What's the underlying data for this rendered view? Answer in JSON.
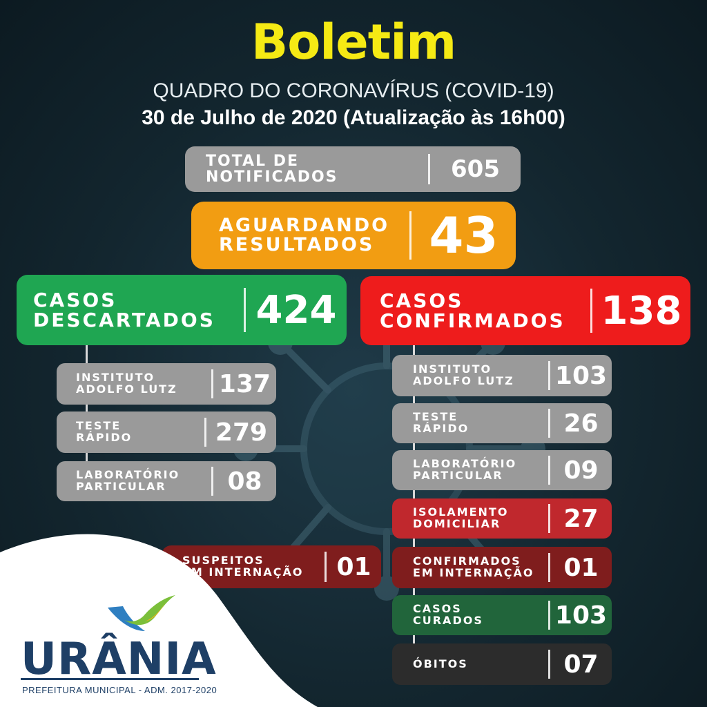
{
  "header": {
    "title": "Boletim",
    "subtitle": "QUADRO DO CORONAVÍRUS (COVID-19)",
    "date": "30 de Julho de 2020 (Atualização às 16h00)"
  },
  "total": {
    "label": "TOTAL DE NOTIFICADOS",
    "value": "605"
  },
  "awaiting": {
    "label_line1": "AGUARDANDO",
    "label_line2": "RESULTADOS",
    "value": "43"
  },
  "discarded": {
    "label_line1": "CASOS",
    "label_line2": "DESCARTADOS",
    "value": "424",
    "items": [
      {
        "line1": "INSTITUTO",
        "line2": "ADOLFO LUTZ",
        "value": "137"
      },
      {
        "line1": "TESTE",
        "line2": "RÁPIDO",
        "value": "279"
      },
      {
        "line1": "LABORATÓRIO",
        "line2": "PARTICULAR",
        "value": "08"
      }
    ]
  },
  "suspects": {
    "line1": "SUSPEITOS",
    "line2": "EM INTERNAÇÃO",
    "value": "01"
  },
  "confirmed": {
    "label_line1": "CASOS",
    "label_line2": "CONFIRMADOS",
    "value": "138",
    "items": [
      {
        "line1": "INSTITUTO",
        "line2": "ADOLFO LUTZ",
        "value": "103"
      },
      {
        "line1": "TESTE",
        "line2": "RÁPIDO",
        "value": "26"
      },
      {
        "line1": "LABORATÓRIO",
        "line2": "PARTICULAR",
        "value": "09"
      },
      {
        "line1": "ISOLAMENTO",
        "line2": "DOMICILIAR",
        "value": "27"
      },
      {
        "line1": "CONFIRMADOS",
        "line2": "EM INTERNAÇÃO",
        "value": "01"
      },
      {
        "line1": "CASOS",
        "line2": "CURADOS",
        "value": "103"
      },
      {
        "line1": "ÓBITOS",
        "line2": "",
        "value": "07"
      }
    ]
  },
  "logo": {
    "name": "URÂNIA",
    "tagline": "PREFEITURA MUNICIPAL - ADM. 2017-2020"
  },
  "colors": {
    "title": "#f5ea14",
    "gray": "#9a9a9a",
    "orange": "#f29d12",
    "green": "#1fa652",
    "red": "#ee1c1c",
    "crimson": "#c0282d",
    "maroon": "#7f1d1d",
    "dark_green": "#21653b",
    "dark": "#2c2c2c"
  },
  "icons": [
    "coronavirus-watermark-icon",
    "urania-logo-icon"
  ]
}
